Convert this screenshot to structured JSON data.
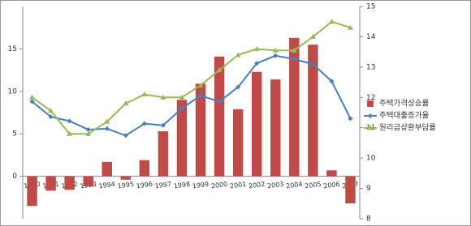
{
  "chart_data": {
    "type": "bar_line",
    "categories": [
      "1990",
      "1991",
      "1992",
      "1993",
      "1994",
      "1995",
      "1996",
      "1997",
      "1998",
      "1999",
      "2000",
      "2001",
      "2002",
      "2003",
      "2004",
      "2005",
      "2006",
      "2007"
    ],
    "series": [
      {
        "name": "주택가격상승률",
        "type": "bar",
        "color": "#be4b48",
        "values": [
          -3.5,
          -1.7,
          -1.6,
          -1.2,
          1.7,
          -0.4,
          1.9,
          5.3,
          9.0,
          10.9,
          14.1,
          7.9,
          12.3,
          11.4,
          16.3,
          15.5,
          0.7,
          -3.2
        ]
      },
      {
        "name": "주택대출증가율",
        "type": "line",
        "marker": "diamond",
        "color": "#4a7ebb",
        "values": [
          8.8,
          7.0,
          6.5,
          5.5,
          5.6,
          4.8,
          6.2,
          6.0,
          8.0,
          9.5,
          8.8,
          10.5,
          13.3,
          14.2,
          13.8,
          13.2,
          11.2,
          6.8
        ]
      },
      {
        "name": "원리금상환부담률",
        "type": "line",
        "marker": "triangle",
        "axis": "y2",
        "color": "#98b954",
        "values": [
          12.0,
          11.56,
          10.8,
          10.8,
          11.2,
          11.8,
          12.1,
          12.0,
          12.0,
          12.4,
          12.9,
          13.4,
          13.6,
          13.55,
          13.55,
          14.0,
          14.5,
          14.3
        ]
      }
    ],
    "ylim": [
      -5,
      20
    ],
    "yticks": [
      0,
      5,
      10,
      15
    ],
    "y2lim": [
      8,
      15
    ],
    "y2ticks": [
      8,
      9,
      10,
      11,
      12,
      13,
      14,
      15
    ],
    "grid": false,
    "legend": "right"
  }
}
